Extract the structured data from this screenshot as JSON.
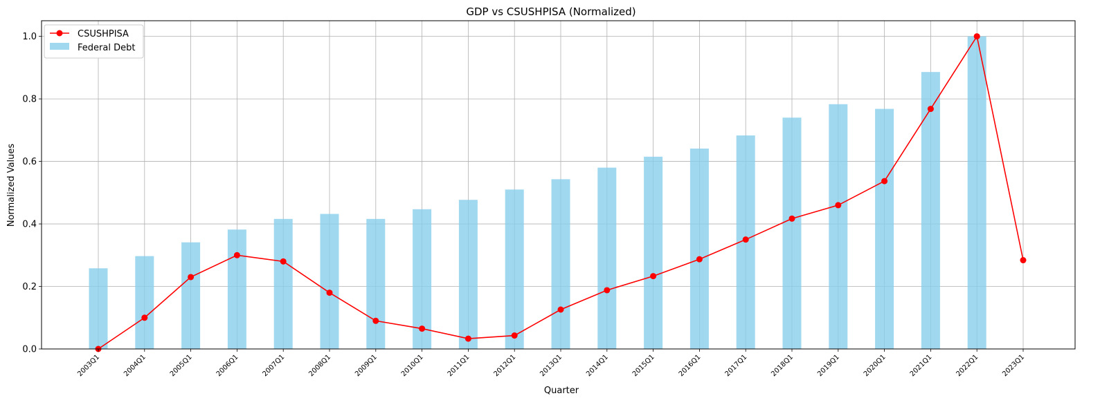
{
  "chart_data": {
    "type": "bar",
    "title": "GDP vs CSUSHPISA (Normalized)",
    "xlabel": "Quarter",
    "ylabel": "Normalized Values",
    "ylim": [
      0,
      1.05
    ],
    "yticks": [
      "0.0",
      "0.2",
      "0.4",
      "0.6",
      "0.8",
      "1.0"
    ],
    "grid": true,
    "legend_position": "top-left",
    "categories": [
      "2003Q1",
      "2004Q1",
      "2005Q1",
      "2006Q1",
      "2007Q1",
      "2008Q1",
      "2009Q1",
      "2010Q1",
      "2011Q1",
      "2012Q1",
      "2013Q1",
      "2014Q1",
      "2015Q1",
      "2016Q1",
      "2017Q1",
      "2018Q1",
      "2019Q1",
      "2020Q1",
      "2021Q1",
      "2022Q1",
      "2023Q1"
    ],
    "series": [
      {
        "name": "CSUSHPISA",
        "kind": "line",
        "color": "#ff0000",
        "values": [
          0.0,
          0.1,
          0.23,
          0.3,
          0.28,
          0.18,
          0.09,
          0.065,
          0.033,
          0.043,
          0.126,
          0.188,
          0.233,
          0.287,
          0.35,
          0.417,
          0.46,
          0.537,
          0.768,
          1.0,
          0.284
        ]
      },
      {
        "name": "Federal Debt",
        "kind": "bar",
        "color": "#87ceeb",
        "values": [
          0.258,
          0.297,
          0.341,
          0.382,
          0.416,
          0.432,
          0.416,
          0.447,
          0.477,
          0.51,
          0.543,
          0.58,
          0.615,
          0.641,
          0.683,
          0.74,
          0.783,
          0.768,
          0.886,
          1.0,
          null
        ]
      }
    ]
  }
}
